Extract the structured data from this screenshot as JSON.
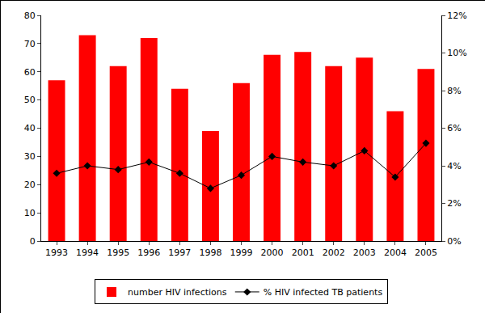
{
  "chart_data": {
    "type": "bar",
    "categories": [
      "1993",
      "1994",
      "1995",
      "1996",
      "1997",
      "1998",
      "1999",
      "2000",
      "2001",
      "2002",
      "2003",
      "2004",
      "2005"
    ],
    "series": [
      {
        "name": "number HIV infections",
        "type": "bar",
        "color": "#ff0000",
        "values": [
          57,
          73,
          62,
          72,
          54,
          39,
          56,
          66,
          67,
          62,
          65,
          46,
          61
        ]
      },
      {
        "name": "% HIV infected TB patients",
        "type": "line",
        "color": "#000000",
        "marker": "diamond",
        "axis": "y2",
        "values": [
          3.6,
          4.0,
          3.8,
          4.2,
          3.6,
          2.8,
          3.5,
          4.5,
          4.2,
          4.0,
          4.8,
          3.4,
          5.2
        ]
      }
    ],
    "ylim": [
      0,
      80
    ],
    "yticks": [
      0,
      10,
      20,
      30,
      40,
      50,
      60,
      70,
      80
    ],
    "y2lim": [
      0,
      12
    ],
    "y2ticks": [
      {
        "value": 0,
        "label": "0%"
      },
      {
        "value": 2,
        "label": "2%"
      },
      {
        "value": 4,
        "label": "4%"
      },
      {
        "value": 6,
        "label": "6%"
      },
      {
        "value": 8,
        "label": "8%"
      },
      {
        "value": 10,
        "label": "10%"
      },
      {
        "value": 12,
        "label": "12%"
      }
    ],
    "grid": false,
    "legend": "bottom"
  }
}
